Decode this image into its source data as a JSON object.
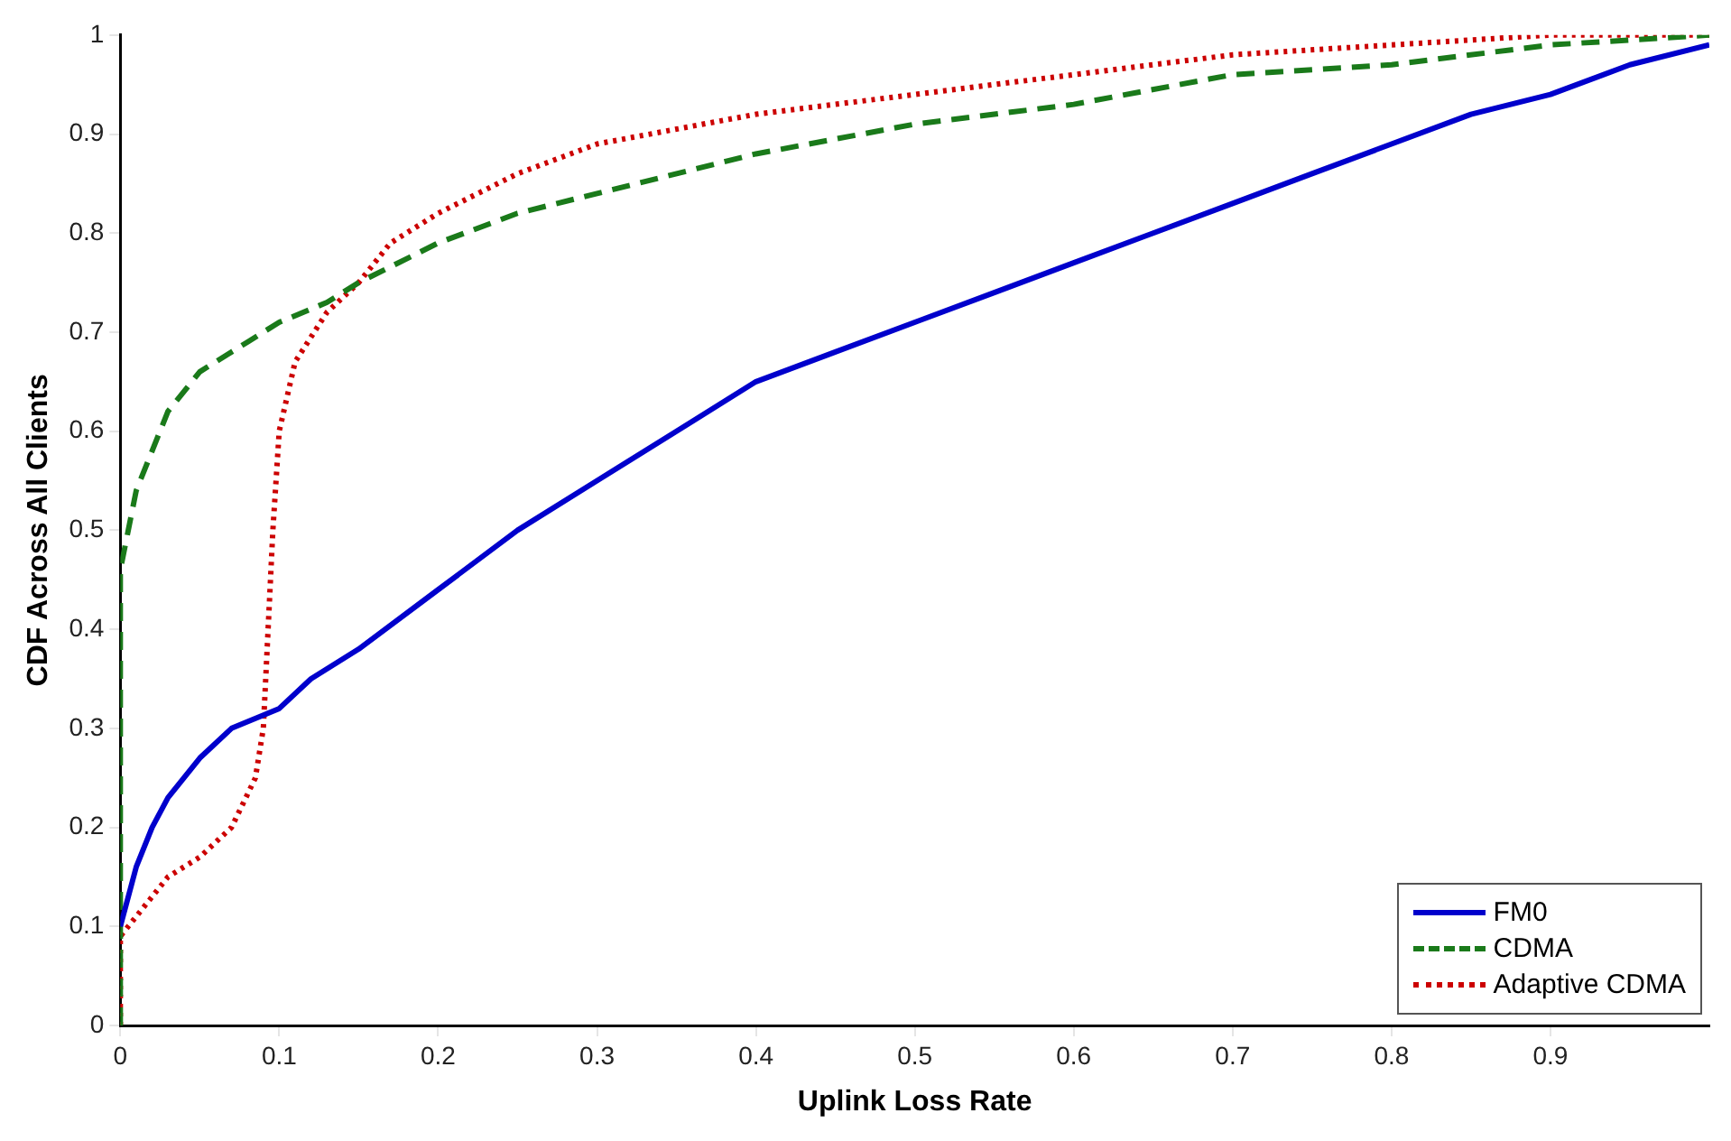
{
  "chart_data": {
    "type": "line",
    "xlabel": "Uplink Loss Rate",
    "ylabel": "CDF Across All Clients",
    "xlim": [
      0,
      1
    ],
    "ylim": [
      0,
      1
    ],
    "xticks": [
      0,
      0.1,
      0.2,
      0.3,
      0.4,
      0.5,
      0.6,
      0.7,
      0.8,
      0.9
    ],
    "yticks": [
      0,
      0.1,
      0.2,
      0.3,
      0.4,
      0.5,
      0.6,
      0.7,
      0.8,
      0.9,
      1
    ],
    "grid": false,
    "legend": "bottom right",
    "marker": "none",
    "series": [
      {
        "name": "FM0",
        "color": "#0000cc",
        "line_style": "solid",
        "x": [
          0,
          0.01,
          0.02,
          0.03,
          0.05,
          0.07,
          0.1,
          0.12,
          0.15,
          0.2,
          0.25,
          0.3,
          0.35,
          0.4,
          0.45,
          0.5,
          0.55,
          0.6,
          0.65,
          0.7,
          0.75,
          0.8,
          0.85,
          0.9,
          0.95,
          1
        ],
        "values": [
          0.1,
          0.16,
          0.2,
          0.23,
          0.27,
          0.3,
          0.32,
          0.35,
          0.38,
          0.44,
          0.5,
          0.55,
          0.6,
          0.65,
          0.68,
          0.71,
          0.74,
          0.77,
          0.8,
          0.83,
          0.86,
          0.89,
          0.92,
          0.94,
          0.97,
          0.99
        ]
      },
      {
        "name": "CDMA",
        "color": "#1a7a1a",
        "line_style": "dashed",
        "x": [
          0,
          0,
          0.005,
          0.01,
          0.02,
          0.03,
          0.05,
          0.08,
          0.1,
          0.13,
          0.15,
          0.2,
          0.25,
          0.3,
          0.4,
          0.5,
          0.6,
          0.7,
          0.8,
          0.9,
          1
        ],
        "values": [
          0,
          0.46,
          0.5,
          0.54,
          0.58,
          0.62,
          0.66,
          0.69,
          0.71,
          0.73,
          0.75,
          0.79,
          0.82,
          0.84,
          0.88,
          0.91,
          0.93,
          0.96,
          0.97,
          0.99,
          1
        ]
      },
      {
        "name": "Adaptive CDMA",
        "color": "#cc0000",
        "line_style": "dotted",
        "x": [
          0,
          0,
          0.01,
          0.03,
          0.05,
          0.07,
          0.085,
          0.09,
          0.093,
          0.096,
          0.1,
          0.11,
          0.13,
          0.15,
          0.17,
          0.2,
          0.25,
          0.3,
          0.4,
          0.5,
          0.6,
          0.7,
          0.8,
          0.9,
          1
        ],
        "values": [
          0,
          0.09,
          0.11,
          0.15,
          0.17,
          0.2,
          0.25,
          0.3,
          0.4,
          0.5,
          0.6,
          0.67,
          0.72,
          0.75,
          0.79,
          0.82,
          0.86,
          0.89,
          0.92,
          0.94,
          0.96,
          0.98,
          0.99,
          1,
          1
        ]
      }
    ]
  }
}
